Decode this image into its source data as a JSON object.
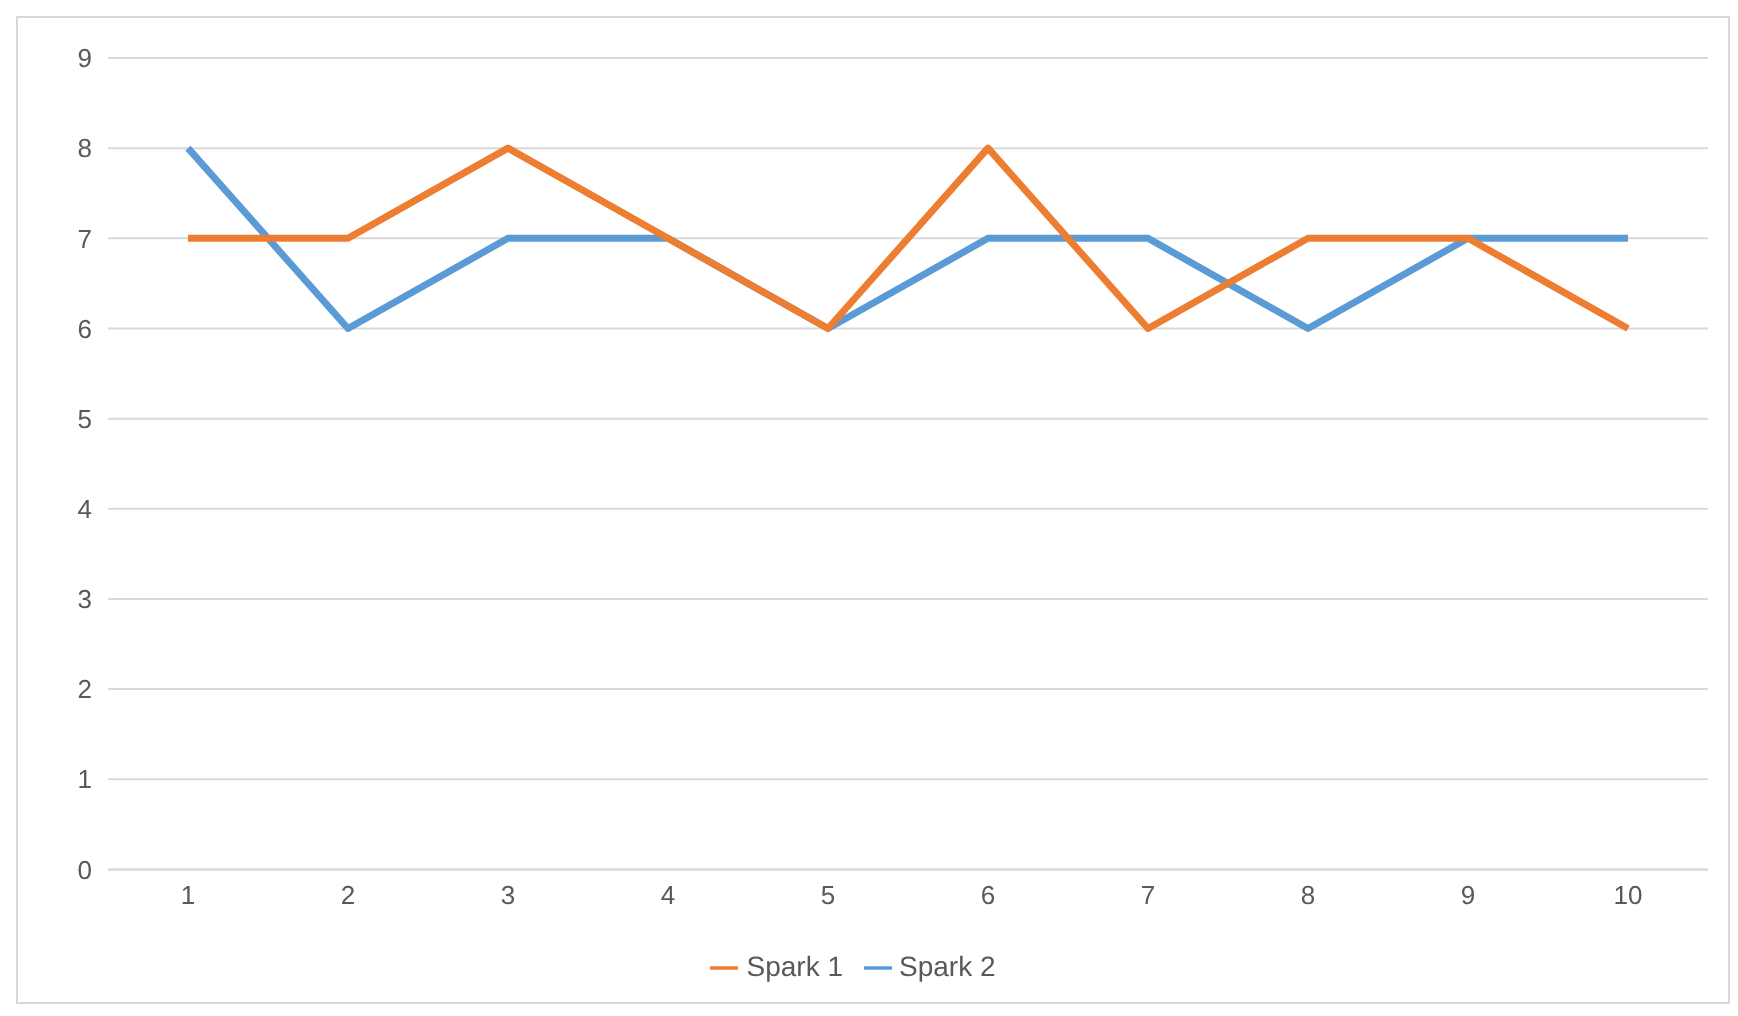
{
  "chart_data": {
    "type": "line",
    "categories": [
      "1",
      "2",
      "3",
      "4",
      "5",
      "6",
      "7",
      "8",
      "9",
      "10"
    ],
    "series": [
      {
        "name": "Spark 2",
        "color": "#5b9bd5",
        "values": [
          8,
          6,
          7,
          7,
          6,
          7,
          7,
          6,
          7,
          7
        ]
      },
      {
        "name": "Spark 1",
        "color": "#ed7d31",
        "values": [
          7,
          7,
          8,
          7,
          6,
          8,
          6,
          7,
          7,
          6
        ]
      }
    ],
    "ylim": [
      0,
      9
    ],
    "yticks": [
      0,
      1,
      2,
      3,
      4,
      5,
      6,
      7,
      8,
      9
    ],
    "grid": "y",
    "legend": "bottom",
    "marker": "none",
    "line_style": "solid"
  }
}
